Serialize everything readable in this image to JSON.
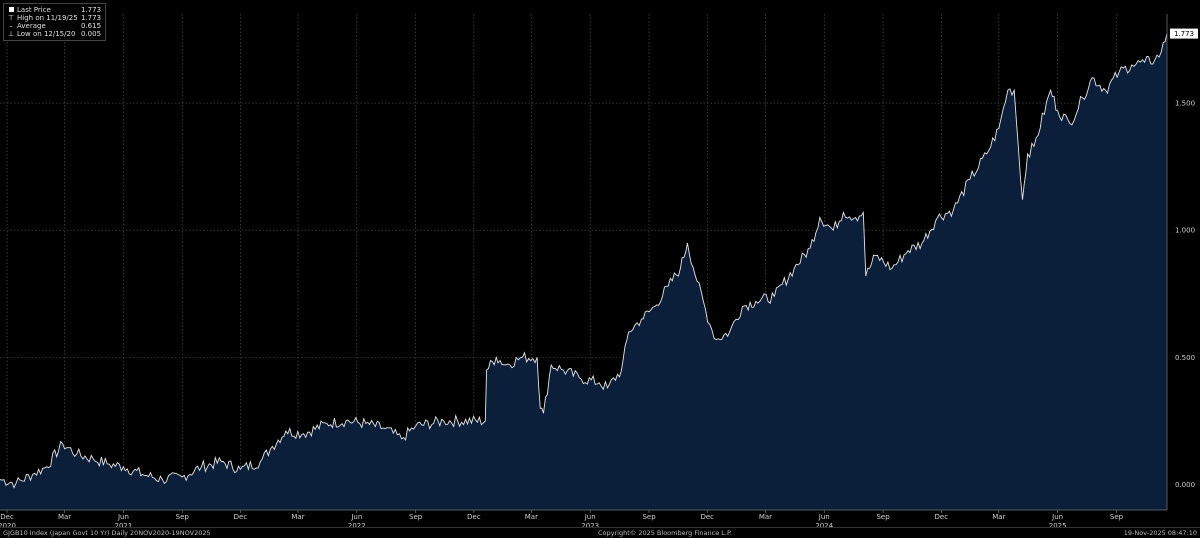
{
  "legend": {
    "items": [
      {
        "label": "Last Price",
        "value": "1.773",
        "icon": "square-swatch-icon"
      },
      {
        "label": "High on 11/19/25",
        "value": "1.773",
        "icon": "high-marker-icon"
      },
      {
        "label": "Average",
        "value": "0.615",
        "icon": "average-marker-icon"
      },
      {
        "label": "Low on 12/15/20",
        "value": "0.005",
        "icon": "low-marker-icon"
      }
    ]
  },
  "footer": {
    "left": "GJGB10 Index (Japan Govt 10 Yr) Daily 20NOV2020-19NOV2025",
    "center": "Copyright© 2025 Bloomberg Finance L.P.",
    "right": "19-Nov-2025 08:47:10"
  },
  "colors": {
    "background": "#000000",
    "area_fill": "#0b1e3a",
    "line": "#e6e6e6",
    "grid": "#5a5a5a",
    "last_price_box": "#ffffff"
  },
  "chart_data": {
    "type": "area",
    "title": "",
    "xlabel": "",
    "ylabel": "",
    "grid": true,
    "legend_position": "top-left",
    "axis_side": "right",
    "xlim": [
      "2020-11-20",
      "2025-11-19"
    ],
    "ylim": [
      -0.1,
      1.85
    ],
    "y_ticks": [
      0.0,
      0.5,
      1.0,
      1.5
    ],
    "y_tick_labels": [
      "0.000",
      "0.500",
      "1.000",
      "1.500"
    ],
    "last_value_label": "1.773",
    "x_ticks": [
      {
        "date": "2020-12-01",
        "label": "Dec",
        "year": "2020"
      },
      {
        "date": "2021-03-01",
        "label": "Mar",
        "year": ""
      },
      {
        "date": "2021-06-01",
        "label": "Jun",
        "year": "2021"
      },
      {
        "date": "2021-09-01",
        "label": "Sep",
        "year": ""
      },
      {
        "date": "2021-12-01",
        "label": "Dec",
        "year": ""
      },
      {
        "date": "2022-03-01",
        "label": "Mar",
        "year": ""
      },
      {
        "date": "2022-06-01",
        "label": "Jun",
        "year": "2022"
      },
      {
        "date": "2022-09-01",
        "label": "Sep",
        "year": ""
      },
      {
        "date": "2022-12-01",
        "label": "Dec",
        "year": ""
      },
      {
        "date": "2023-03-01",
        "label": "Mar",
        "year": ""
      },
      {
        "date": "2023-06-01",
        "label": "Jun",
        "year": "2023"
      },
      {
        "date": "2023-09-01",
        "label": "Sep",
        "year": ""
      },
      {
        "date": "2023-12-01",
        "label": "Dec",
        "year": ""
      },
      {
        "date": "2024-03-01",
        "label": "Mar",
        "year": ""
      },
      {
        "date": "2024-06-01",
        "label": "Jun",
        "year": "2024"
      },
      {
        "date": "2024-09-01",
        "label": "Sep",
        "year": ""
      },
      {
        "date": "2024-12-01",
        "label": "Dec",
        "year": ""
      },
      {
        "date": "2025-03-01",
        "label": "Mar",
        "year": ""
      },
      {
        "date": "2025-06-01",
        "label": "Jun",
        "year": "2025"
      },
      {
        "date": "2025-09-01",
        "label": "Sep",
        "year": ""
      }
    ],
    "series": [
      {
        "name": "Last Price",
        "points": [
          [
            "2020-11-20",
            0.02
          ],
          [
            "2020-12-15",
            0.005
          ],
          [
            "2021-01-10",
            0.04
          ],
          [
            "2021-02-01",
            0.07
          ],
          [
            "2021-02-26",
            0.16
          ],
          [
            "2021-03-20",
            0.12
          ],
          [
            "2021-04-15",
            0.1
          ],
          [
            "2021-05-10",
            0.08
          ],
          [
            "2021-06-01",
            0.07
          ],
          [
            "2021-07-01",
            0.04
          ],
          [
            "2021-08-01",
            0.02
          ],
          [
            "2021-09-01",
            0.03
          ],
          [
            "2021-10-01",
            0.07
          ],
          [
            "2021-11-01",
            0.09
          ],
          [
            "2021-12-01",
            0.06
          ],
          [
            "2022-01-01",
            0.09
          ],
          [
            "2022-01-20",
            0.15
          ],
          [
            "2022-02-10",
            0.21
          ],
          [
            "2022-03-10",
            0.2
          ],
          [
            "2022-04-15",
            0.24
          ],
          [
            "2022-05-15",
            0.25
          ],
          [
            "2022-06-15",
            0.24
          ],
          [
            "2022-07-15",
            0.22
          ],
          [
            "2022-08-10",
            0.18
          ],
          [
            "2022-09-01",
            0.23
          ],
          [
            "2022-10-15",
            0.25
          ],
          [
            "2022-12-19",
            0.25
          ],
          [
            "2022-12-21",
            0.45
          ],
          [
            "2023-01-05",
            0.5
          ],
          [
            "2023-01-20",
            0.47
          ],
          [
            "2023-02-15",
            0.5
          ],
          [
            "2023-03-10",
            0.5
          ],
          [
            "2023-03-15",
            0.3
          ],
          [
            "2023-03-20",
            0.28
          ],
          [
            "2023-04-01",
            0.47
          ],
          [
            "2023-04-20",
            0.45
          ],
          [
            "2023-05-15",
            0.42
          ],
          [
            "2023-06-15",
            0.4
          ],
          [
            "2023-06-28",
            0.38
          ],
          [
            "2023-07-20",
            0.45
          ],
          [
            "2023-07-31",
            0.6
          ],
          [
            "2023-08-20",
            0.65
          ],
          [
            "2023-09-10",
            0.7
          ],
          [
            "2023-10-01",
            0.78
          ],
          [
            "2023-10-20",
            0.85
          ],
          [
            "2023-10-31",
            0.95
          ],
          [
            "2023-11-15",
            0.8
          ],
          [
            "2023-12-05",
            0.63
          ],
          [
            "2023-12-15",
            0.57
          ],
          [
            "2024-01-05",
            0.6
          ],
          [
            "2024-01-25",
            0.7
          ],
          [
            "2024-02-15",
            0.72
          ],
          [
            "2024-03-15",
            0.74
          ],
          [
            "2024-04-15",
            0.85
          ],
          [
            "2024-05-10",
            0.93
          ],
          [
            "2024-05-25",
            1.05
          ],
          [
            "2024-06-15",
            1.0
          ],
          [
            "2024-07-01",
            1.07
          ],
          [
            "2024-07-20",
            1.05
          ],
          [
            "2024-08-01",
            1.07
          ],
          [
            "2024-08-05",
            0.82
          ],
          [
            "2024-08-20",
            0.9
          ],
          [
            "2024-09-15",
            0.85
          ],
          [
            "2024-10-10",
            0.92
          ],
          [
            "2024-11-01",
            0.95
          ],
          [
            "2024-11-25",
            1.05
          ],
          [
            "2024-12-20",
            1.08
          ],
          [
            "2025-01-15",
            1.2
          ],
          [
            "2025-02-10",
            1.3
          ],
          [
            "2025-03-01",
            1.4
          ],
          [
            "2025-03-15",
            1.55
          ],
          [
            "2025-03-25",
            1.55
          ],
          [
            "2025-04-07",
            1.12
          ],
          [
            "2025-04-15",
            1.3
          ],
          [
            "2025-04-25",
            1.33
          ],
          [
            "2025-05-21",
            1.55
          ],
          [
            "2025-06-01",
            1.47
          ],
          [
            "2025-06-20",
            1.42
          ],
          [
            "2025-07-10",
            1.52
          ],
          [
            "2025-07-25",
            1.6
          ],
          [
            "2025-08-15",
            1.55
          ],
          [
            "2025-09-05",
            1.62
          ],
          [
            "2025-09-25",
            1.65
          ],
          [
            "2025-10-15",
            1.66
          ],
          [
            "2025-10-31",
            1.67
          ],
          [
            "2025-11-10",
            1.7
          ],
          [
            "2025-11-19",
            1.773
          ]
        ]
      }
    ]
  }
}
